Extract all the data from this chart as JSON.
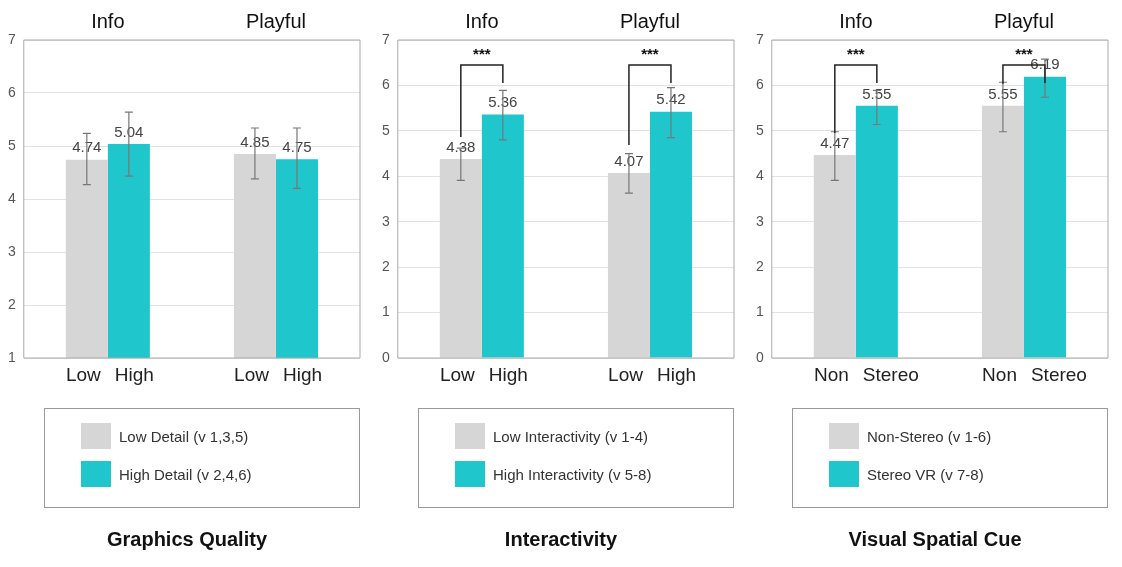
{
  "chart_data": [
    {
      "type": "bar",
      "title": "Graphics Quality",
      "categories": [
        "Info",
        "Playful"
      ],
      "ylim": [
        1,
        7
      ],
      "yticks": [
        1,
        2,
        3,
        4,
        5,
        6,
        7
      ],
      "grid": "y",
      "legend": "bottom",
      "data_labels": true,
      "annotations": [
        "Low",
        "High",
        "Low",
        "High"
      ],
      "series": [
        {
          "name": "Low Detail (v 1,3,5)",
          "color": "#d6d6d6",
          "values": [
            4.74,
            4.85
          ],
          "errors": [
            [
              4.27,
              5.24
            ],
            [
              4.38,
              5.34
            ]
          ]
        },
        {
          "name": "High Detail (v 2,4,6)",
          "color": "#1fc6cc",
          "values": [
            5.04,
            4.75
          ],
          "errors": [
            [
              4.43,
              5.64
            ],
            [
              4.2,
              5.34
            ]
          ]
        }
      ]
    },
    {
      "type": "bar",
      "title": "Interactivity",
      "categories": [
        "Info",
        "Playful"
      ],
      "ylim": [
        0,
        7
      ],
      "yticks": [
        0,
        1,
        2,
        3,
        4,
        5,
        6,
        7
      ],
      "grid": "y",
      "legend": "bottom",
      "data_labels": true,
      "annotations": [
        "Low",
        "High",
        "Low",
        "High",
        "***",
        "***"
      ],
      "series": [
        {
          "name": "Low Interactivity (v 1-4)",
          "color": "#d6d6d6",
          "values": [
            4.38,
            4.07
          ],
          "errors": [
            [
              3.91,
              4.62
            ],
            [
              3.63,
              4.5
            ]
          ]
        },
        {
          "name": "High Interactivity (v 5-8)",
          "color": "#1fc6cc",
          "values": [
            5.36,
            5.42
          ],
          "errors": [
            [
              4.8,
              5.89
            ],
            [
              4.85,
              5.95
            ]
          ]
        }
      ]
    },
    {
      "type": "bar",
      "title": "Visual Spatial Cue",
      "categories": [
        "Info",
        "Playful"
      ],
      "ylim": [
        0,
        7
      ],
      "yticks": [
        0,
        1,
        2,
        3,
        4,
        5,
        6,
        7
      ],
      "grid": "y",
      "legend": "bottom",
      "data_labels": true,
      "annotations": [
        "Non",
        "Stereo",
        "Non",
        "Stereo",
        "***",
        "***"
      ],
      "series": [
        {
          "name": "Non-Stereo (v 1-6)",
          "color": "#d6d6d6",
          "values": [
            4.47,
            5.55
          ],
          "errors": [
            [
              3.91,
              4.98
            ],
            [
              4.98,
              6.07
            ]
          ]
        },
        {
          "name": "Stereo VR (v 7-8)",
          "color": "#1fc6cc",
          "values": [
            5.55,
            6.19
          ],
          "errors": [
            [
              5.14,
              5.89
            ],
            [
              5.74,
              6.58
            ]
          ]
        }
      ]
    }
  ]
}
